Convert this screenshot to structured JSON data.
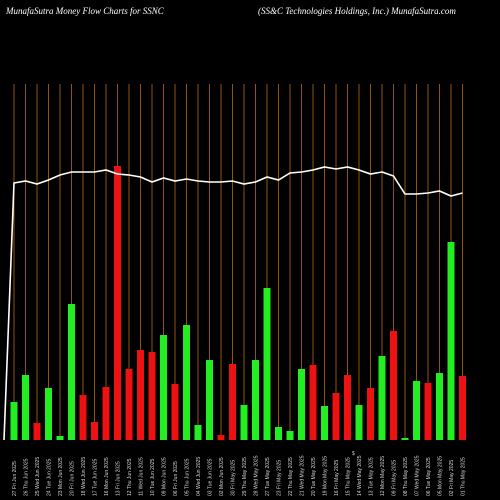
{
  "header": {
    "left": "MunafaSutra  Money Flow  Charts for SSNC",
    "right": "(SS&C Technologies Holdings, Inc.) MunafaSutra.com"
  },
  "chart_data": {
    "type": "bar",
    "title": "MunafaSutra  Money Flow  Charts for SSNC",
    "subtitle": "(SS&C Technologies Holdings, Inc.) MunafaSutra.com",
    "currency_symbol": "$",
    "grid": true,
    "bar_colors": {
      "up": "#22ee22",
      "down": "#ee1111"
    },
    "line_color": "#ffffff",
    "gridline_color": "#b86a10",
    "categories": [
      "27 Fri Jun 2025",
      "26 Thu Jun 2025",
      "25 Wed Jun 2025",
      "24 Tue Jun 2025",
      "23 Mon Jun 2025",
      "20 Fri Jun 2025",
      "18 Wed Jun 2025",
      "17 Tue Jun 2025",
      "16 Mon Jun 2025",
      "13 Fri Jun 2025",
      "12 Thu Jun 2025",
      "11 Wed Jun 2025",
      "10 Tue Jun 2025",
      "09 Mon Jun 2025",
      "06 Fri Jun 2025",
      "05 Thu Jun 2025",
      "04 Wed Jun 2025",
      "03 Tue Jun 2025",
      "02 Mon Jun 2025",
      "30 Fri May 2025",
      "29 Thu May 2025",
      "28 Wed May 2025",
      "27 Tue May 2025",
      "23 Fri May 2025",
      "22 Thu May 2025",
      "21 Wed May 2025",
      "20 Tue May 2025",
      "19 Mon May 2025",
      "16 Fri May 2025",
      "15 Thu May 2025",
      "14 Wed May 2025",
      "13 Tue May 2025",
      "12 Mon May 2025",
      "09 Fri May 2025",
      "08 Thu May 2025",
      "07 Wed May 2025",
      "06 Tue May 2025",
      "05 Mon May 2025",
      "02 Fri May 2025",
      "01 Thu May 2025"
    ],
    "values": [
      38,
      65,
      17,
      52,
      4,
      136,
      45,
      18,
      53,
      274,
      71,
      90,
      88,
      105,
      56,
      115,
      15,
      80,
      5,
      76,
      35,
      80,
      152,
      13,
      9,
      71,
      75,
      34,
      47,
      65,
      35,
      52,
      84,
      109,
      2,
      59,
      57,
      67,
      198,
      64
    ],
    "direction": [
      "up",
      "up",
      "down",
      "up",
      "up",
      "up",
      "down",
      "down",
      "down",
      "down",
      "down",
      "down",
      "down",
      "up",
      "down",
      "up",
      "up",
      "up",
      "down",
      "down",
      "up",
      "up",
      "up",
      "up",
      "up",
      "up",
      "down",
      "up",
      "down",
      "down",
      "up",
      "down",
      "up",
      "down",
      "up",
      "up",
      "down",
      "up",
      "up",
      "down"
    ],
    "price_line": [
      257,
      259,
      256,
      260,
      265,
      268,
      268,
      268,
      270,
      266,
      265,
      263,
      258,
      262,
      259,
      261,
      259,
      258,
      258,
      259,
      256,
      258,
      263,
      260,
      267,
      268,
      270,
      273,
      271,
      273,
      270,
      266,
      268,
      264,
      246,
      246,
      247,
      249,
      244,
      247
    ],
    "ylim": [
      0,
      340
    ],
    "price_ylim": [
      0,
      340
    ]
  }
}
